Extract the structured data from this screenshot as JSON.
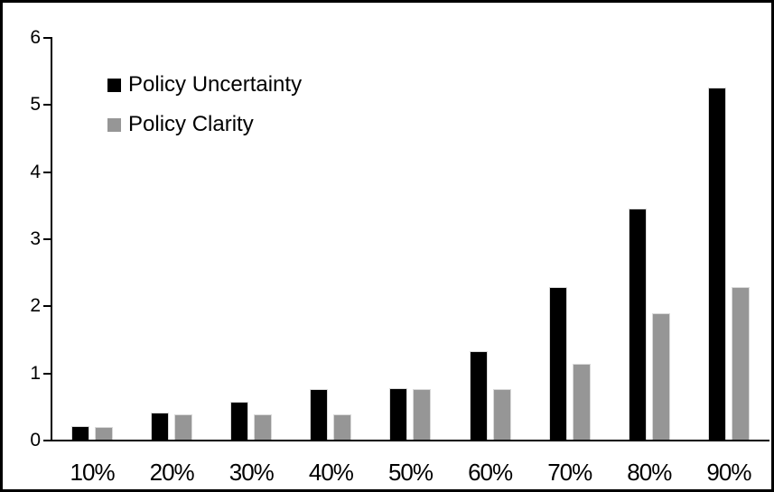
{
  "chart_data": {
    "type": "bar",
    "title": "",
    "xlabel": "",
    "ylabel": "",
    "categories": [
      "10%",
      "20%",
      "30%",
      "40%",
      "50%",
      "60%",
      "70%",
      "80%",
      "90%"
    ],
    "series": [
      {
        "name": "Policy Uncertainty",
        "color": "#000000",
        "values": [
          0.2,
          0.4,
          0.57,
          0.76,
          0.77,
          1.32,
          2.28,
          3.45,
          5.25
        ]
      },
      {
        "name": "Policy Clarity",
        "color": "#969696",
        "values": [
          0.19,
          0.38,
          0.38,
          0.38,
          0.75,
          0.76,
          1.13,
          1.88,
          2.27
        ]
      }
    ],
    "ylim": [
      0,
      6
    ],
    "yticks": [
      0,
      1,
      2,
      3,
      4,
      5,
      6
    ],
    "grid": false,
    "legend_position": "inside-top-left",
    "frame_color": "#000000",
    "bar_outline_color": "#d9d9d9"
  }
}
